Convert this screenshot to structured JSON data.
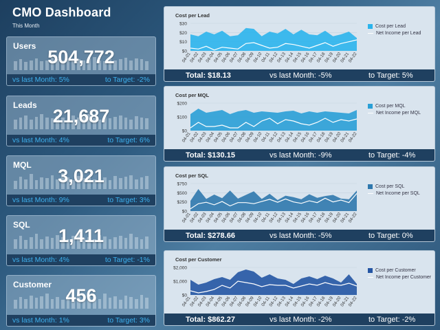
{
  "header": {
    "title": "CMO Dashboard",
    "subtitle": "This Month"
  },
  "kpis": [
    {
      "name": "Users",
      "value": "504,772",
      "vs_last_month": "vs last Month: 5%",
      "to_target": "to Target: -2%",
      "bars": [
        0.55,
        0.65,
        0.5,
        0.6,
        0.7,
        0.55,
        0.6,
        0.75,
        0.65,
        0.6,
        0.7,
        0.55,
        0.65,
        0.6,
        0.7,
        0.8,
        0.6,
        0.55,
        0.7,
        0.6,
        0.65,
        0.75,
        0.6,
        0.7,
        0.65,
        0.55
      ]
    },
    {
      "name": "Leads",
      "value": "21,687",
      "vs_last_month": "vs last Month: 4%",
      "to_target": "to Target: 6%",
      "bars": [
        0.6,
        0.7,
        0.85,
        0.6,
        0.75,
        0.9,
        0.7,
        0.65,
        0.8,
        0.7,
        0.6,
        0.85,
        0.7,
        0.75,
        0.9,
        0.7,
        0.6,
        0.8,
        0.65,
        0.75,
        0.85,
        0.7,
        0.6,
        0.8,
        0.7,
        0.65
      ]
    },
    {
      "name": "MQL",
      "value": "3,021",
      "vs_last_month": "vs last Month: 9%",
      "to_target": "to Target: 3%",
      "bars": [
        0.5,
        0.75,
        0.6,
        0.9,
        0.55,
        0.7,
        0.65,
        0.85,
        0.6,
        0.95,
        0.7,
        0.55,
        0.8,
        0.65,
        0.75,
        0.6,
        0.9,
        0.7,
        0.55,
        0.8,
        0.65,
        0.75,
        0.85,
        0.6,
        0.7,
        0.8
      ]
    },
    {
      "name": "SQL",
      "value": "1,411",
      "vs_last_month": "vs last Month: 4%",
      "to_target": "to Target: -1%",
      "bars": [
        0.6,
        0.8,
        0.55,
        0.7,
        0.9,
        0.6,
        0.75,
        0.65,
        0.85,
        0.7,
        0.6,
        0.8,
        0.95,
        0.65,
        0.7,
        0.6,
        0.85,
        0.75,
        0.6,
        0.7,
        0.8,
        0.65,
        0.9,
        0.7,
        0.6,
        0.75
      ]
    },
    {
      "name": "Customer",
      "value": "456",
      "vs_last_month": "vs last Month: 1%",
      "to_target": "to Target: 3%",
      "bars": [
        0.55,
        0.7,
        0.6,
        0.8,
        0.65,
        0.75,
        0.9,
        0.6,
        0.7,
        0.55,
        0.85,
        0.65,
        0.75,
        0.6,
        0.8,
        0.7,
        0.6,
        0.9,
        0.65,
        0.75,
        0.55,
        0.8,
        0.7,
        0.6,
        0.85,
        0.65
      ]
    }
  ],
  "colors": {
    "footer_bg": "#1f4060",
    "kpi_accent": "#3fb2f0",
    "panel_bg": "#d9e4ee",
    "lead": "#2bb4ec",
    "mql": "#2a9fd6",
    "sql": "#2f78ad",
    "customer": "#2455a3"
  },
  "chart_data": [
    {
      "type": "area",
      "title": "Cost per Lead",
      "x": [
        "04-01",
        "04-02",
        "04-03",
        "04-04",
        "04-05",
        "04-06",
        "04-07",
        "04-08",
        "04-09",
        "04-10",
        "04-11",
        "04-12",
        "04-13",
        "04-14",
        "04-15",
        "04-16",
        "04-17",
        "04-18",
        "04-19",
        "04-20",
        "04-21",
        "04-22"
      ],
      "yticks": [
        "$0",
        "$10",
        "$20",
        "$30"
      ],
      "ylim": [
        0,
        30
      ],
      "series": [
        {
          "name": "Cost per Lead",
          "kind": "area",
          "color": "#2bb4ec",
          "values": [
            18,
            16,
            21,
            18,
            22,
            16,
            17,
            25,
            24,
            16,
            21,
            19,
            24,
            18,
            23,
            18,
            17,
            22,
            16,
            18,
            21,
            14
          ]
        },
        {
          "name": "Net Income per Lead",
          "kind": "line",
          "color": "#ffffff",
          "values": [
            3,
            2,
            5,
            1,
            4,
            3,
            2,
            8,
            9,
            6,
            3,
            4,
            8,
            7,
            5,
            3,
            6,
            9,
            5,
            8,
            10,
            12
          ]
        }
      ],
      "legend": [
        "Cost per Lead",
        "Net Income per Lead"
      ],
      "footer": {
        "total": "Total: $18.13",
        "vs": "vs last Month: -5%",
        "target": "to Target: 5%"
      }
    },
    {
      "type": "area",
      "title": "Cost per MQL",
      "x": [
        "04-01",
        "04-02",
        "04-03",
        "04-04",
        "04-05",
        "04-06",
        "04-07",
        "04-08",
        "04-09",
        "04-10",
        "04-11",
        "04-12",
        "04-13",
        "04-14",
        "04-15",
        "04-16",
        "04-17",
        "04-18",
        "04-19",
        "04-20",
        "04-21",
        "04-22"
      ],
      "yticks": [
        "$0",
        "$100",
        "$200"
      ],
      "ylim": [
        0,
        200
      ],
      "series": [
        {
          "name": "Cost per MQL",
          "kind": "area",
          "color": "#2a9fd6",
          "values": [
            120,
            160,
            130,
            140,
            150,
            120,
            140,
            150,
            130,
            140,
            135,
            130,
            140,
            145,
            125,
            140,
            130,
            140,
            135,
            130,
            125,
            150
          ]
        },
        {
          "name": "Net Income per MQL",
          "kind": "line",
          "color": "#ffffff",
          "values": [
            20,
            60,
            30,
            30,
            40,
            20,
            20,
            60,
            30,
            70,
            90,
            50,
            80,
            70,
            50,
            40,
            60,
            90,
            60,
            80,
            70,
            85
          ]
        }
      ],
      "legend": [
        "Cost per MQL",
        "Net Income per MQL"
      ],
      "footer": {
        "total": "Total: $130.15",
        "vs": "vs last Month: -9%",
        "target": "to Target: -4%"
      }
    },
    {
      "type": "area",
      "title": "Cost per SQL",
      "x": [
        "04-01",
        "04-02",
        "04-03",
        "04-04",
        "04-05",
        "04-06",
        "04-07",
        "04-08",
        "04-09",
        "04-10",
        "04-11",
        "04-12",
        "04-13",
        "04-14",
        "04-15",
        "04-16",
        "04-17",
        "04-18",
        "04-19",
        "04-20",
        "04-21",
        "04-22"
      ],
      "yticks": [
        "$0",
        "$250",
        "$500",
        "$750"
      ],
      "ylim": [
        0,
        750
      ],
      "series": [
        {
          "name": "Cost per SQL",
          "kind": "area",
          "color": "#2f78ad",
          "values": [
            280,
            600,
            330,
            450,
            350,
            560,
            340,
            440,
            540,
            330,
            470,
            300,
            420,
            380,
            320,
            460,
            360,
            410,
            440,
            340,
            320,
            560
          ]
        },
        {
          "name": "Net Income per SQL",
          "kind": "line",
          "color": "#ffffff",
          "values": [
            60,
            200,
            240,
            170,
            260,
            140,
            230,
            230,
            200,
            260,
            320,
            240,
            330,
            250,
            210,
            280,
            230,
            350,
            250,
            300,
            230,
            480
          ]
        }
      ],
      "legend": [
        "Cost per SQL",
        "Net Income per SQL"
      ],
      "footer": {
        "total": "Total: $278.66",
        "vs": "vs last Month: -5%",
        "target": "to Target: 0%"
      }
    },
    {
      "type": "area",
      "title": "Cost per Customer",
      "x": [
        "04-01",
        "04-02",
        "04-03",
        "04-04",
        "04-05",
        "04-06",
        "04-07",
        "04-08",
        "04-09",
        "04-10",
        "04-11",
        "04-12",
        "04-13",
        "04-14",
        "04-15",
        "04-16",
        "04-17",
        "04-18",
        "04-19",
        "04-20",
        "04-21",
        "04-22"
      ],
      "yticks": [
        "$0",
        "$1,000",
        "$2,000"
      ],
      "ylim": [
        0,
        2000
      ],
      "series": [
        {
          "name": "Cost per Customer",
          "kind": "area",
          "color": "#2455a3",
          "values": [
            1100,
            750,
            900,
            1150,
            1300,
            1100,
            1650,
            1850,
            1700,
            1250,
            1500,
            1200,
            1100,
            800,
            1200,
            1350,
            1150,
            1400,
            1200,
            900,
            1500,
            800
          ]
        },
        {
          "name": "Net Income per Customer",
          "kind": "line",
          "color": "#ffffff",
          "values": [
            300,
            150,
            250,
            400,
            700,
            500,
            1000,
            900,
            800,
            600,
            750,
            700,
            700,
            500,
            650,
            800,
            700,
            900,
            750,
            700,
            850,
            650
          ]
        }
      ],
      "legend": [
        "Cost per Customer",
        "Net Income per Customer"
      ],
      "footer": {
        "total": "Total: $862.27",
        "vs": "vs last Month: -2%",
        "target": "to Target: -2%"
      }
    }
  ]
}
